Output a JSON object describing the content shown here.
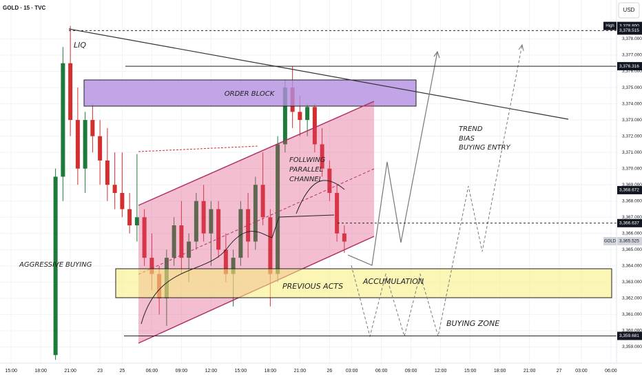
{
  "chart_data": {
    "type": "candlestick",
    "title": "GOLD · 15 · TVC",
    "currency": "USD",
    "up_color": "#1e7a3a",
    "down_color": "#d32f2f",
    "grid": true,
    "categories": [
      null,
      "15:00",
      null,
      null,
      null,
      "18:00",
      null,
      null,
      null,
      "21:00",
      null,
      null,
      null,
      "23",
      null,
      null,
      "25",
      null,
      null,
      null,
      "06:00",
      null,
      null,
      null,
      "09:00",
      null,
      null,
      null,
      "12:00",
      null,
      null,
      null,
      "15:00",
      null,
      null,
      null,
      "18:00",
      null,
      null,
      null,
      "21:00",
      null,
      null,
      null,
      "26",
      null,
      null,
      "03:00",
      null,
      null,
      null,
      "06:00",
      null,
      null,
      null,
      "09:00",
      null,
      null,
      null,
      "12:00",
      null,
      null,
      null,
      "15:00",
      null,
      null,
      null,
      "18:00",
      null,
      null,
      null,
      "21:00",
      null,
      null,
      null,
      "27",
      null,
      null,
      "03:00",
      null,
      null,
      null,
      "06:00"
    ],
    "open": [
      null,
      null,
      null,
      null,
      null,
      null,
      null,
      3358.5,
      3369.5,
      3376.5,
      3373,
      3370,
      3373,
      3372,
      3370.5,
      3369,
      3368.5,
      3367.5,
      3366.5,
      3367,
      3364.5,
      3363.5,
      3362,
      3364.5,
      3366.5,
      3364.5,
      3365.5,
      3368,
      3366,
      3367.5,
      3365,
      3363.5,
      3364.5,
      3367.5,
      3365.5,
      3369,
      3367,
      3363.5,
      3371.5,
      3375,
      3373.5,
      3373,
      3373.8,
      3371.5,
      3370,
      3368.5,
      3366,
      null,
      null,
      null,
      null,
      null,
      null,
      null,
      null,
      null,
      null,
      null,
      null,
      null,
      null,
      null,
      null,
      null,
      null,
      null,
      null,
      null,
      null,
      null,
      null,
      null,
      null,
      null,
      null,
      null,
      null,
      null,
      null,
      null,
      null,
      null,
      null
    ],
    "high": [
      null,
      null,
      null,
      null,
      null,
      null,
      null,
      3370,
      3377.5,
      3378.8,
      3375,
      3373.5,
      3374,
      3373,
      3372.5,
      3371,
      3371,
      3368.5,
      3370.9,
      3367.5,
      3366,
      3364,
      3365,
      3367,
      3368,
      3366,
      3368.5,
      3369,
      3368,
      3368,
      3366,
      3365,
      3368,
      3368.5,
      3369.5,
      3371,
      3367.5,
      3372,
      3375.5,
      3376.3,
      3374.5,
      3374,
      3374,
      3372.5,
      3370.5,
      3369,
      3366.5,
      null,
      null,
      null,
      null,
      null,
      null,
      null,
      null,
      null,
      null,
      null,
      null,
      null,
      null,
      null,
      null,
      null,
      null,
      null,
      null,
      null,
      null,
      null,
      null,
      null,
      null,
      null,
      null,
      null,
      null,
      null,
      null,
      null,
      null,
      null,
      null
    ],
    "low": [
      null,
      null,
      null,
      null,
      null,
      null,
      null,
      3358.2,
      3368,
      3372,
      3369,
      3368.5,
      3371,
      3369,
      3368,
      3367.5,
      3367,
      3366,
      3365.5,
      3364,
      3362.5,
      3361,
      3360.3,
      3364,
      3363.5,
      3363,
      3365,
      3365.5,
      3364,
      3364.5,
      3363,
      3361.5,
      3364,
      3364.5,
      3365,
      3366.5,
      3361.5,
      3363,
      3371,
      3372.5,
      3372,
      3372,
      3371,
      3369.5,
      3368,
      3365.5,
      3364.8,
      null,
      null,
      null,
      null,
      null,
      null,
      null,
      null,
      null,
      null,
      null,
      null,
      null,
      null,
      null,
      null,
      null,
      null,
      null,
      null,
      null,
      null,
      null,
      null,
      null,
      null,
      null,
      null,
      null,
      null,
      null,
      null,
      null,
      null,
      null,
      null
    ],
    "close": [
      null,
      null,
      null,
      null,
      null,
      null,
      null,
      3369.5,
      3376.5,
      3373,
      3370,
      3373,
      3372,
      3370.5,
      3369,
      3368.5,
      3367.5,
      3366.5,
      3367,
      3364.5,
      3363.5,
      3362,
      3364.5,
      3366.5,
      3364.5,
      3365.5,
      3368,
      3366,
      3367.5,
      3365,
      3363.5,
      3364.5,
      3367.5,
      3365.5,
      3369,
      3367,
      3363.5,
      3371.5,
      3375,
      3373.5,
      3373,
      3373.8,
      3371.5,
      3370,
      3368.5,
      3366,
      3365.5,
      null,
      null,
      null,
      null,
      null,
      null,
      null,
      null,
      null,
      null,
      null,
      null,
      null,
      null,
      null,
      null,
      null,
      null,
      null,
      null,
      null,
      null,
      null,
      null,
      null,
      null,
      null,
      null,
      null,
      null,
      null,
      null,
      null,
      null,
      null,
      null
    ],
    "ylim": [
      3358.0,
      3380.4
    ],
    "yticks": [
      {
        "value": 3359,
        "label": "3,359.000"
      },
      {
        "value": 3360,
        "label": "3,360.000"
      },
      {
        "value": 3361,
        "label": "3,361.000"
      },
      {
        "value": 3362,
        "label": "3,362.000"
      },
      {
        "value": 3363,
        "label": "3,363.000"
      },
      {
        "value": 3364,
        "label": "3,364.000"
      },
      {
        "value": 3365,
        "label": "3,365.000"
      },
      {
        "value": 3366,
        "label": "3,366.000"
      },
      {
        "value": 3367,
        "label": "3,367.000"
      },
      {
        "value": 3368,
        "label": "3,368.000"
      },
      {
        "value": 3369,
        "label": "3,369.000"
      },
      {
        "value": 3370,
        "label": "3,370.000"
      },
      {
        "value": 3371,
        "label": "3,371.000"
      },
      {
        "value": 3372,
        "label": "3,372.000"
      },
      {
        "value": 3373,
        "label": "3,373.000"
      },
      {
        "value": 3374,
        "label": "3,374.000"
      },
      {
        "value": 3375,
        "label": "3,375.000"
      },
      {
        "value": 3376,
        "label": "3,376.000"
      },
      {
        "value": 3377,
        "label": "3,377.000"
      },
      {
        "value": 3378,
        "label": "3,378.000"
      }
    ],
    "price_levels": [
      {
        "value": 3378.8,
        "label": "3,378.800",
        "tag": "High",
        "line": "none",
        "color": "#131722"
      },
      {
        "value": 3378.515,
        "label": "3,378.515",
        "line": "dashed",
        "color": "#131722"
      },
      {
        "value": 3376.316,
        "label": "3,376.316",
        "line": "solid",
        "color": "#131722"
      },
      {
        "value": 3368.672,
        "label": "3,368.672",
        "line": "none",
        "color": "#131722"
      },
      {
        "value": 3366.637,
        "label": "3,366.637",
        "line": "dashed",
        "color": "#131722"
      },
      {
        "value": 3365.525,
        "label": "3,365.525",
        "tag": "GOLD",
        "line": "none",
        "color": "#d1d4dc"
      },
      {
        "value": 3359.681,
        "label": "3,359.681",
        "line": "solid",
        "color": "#131722"
      }
    ],
    "annotations": [
      "LIQ",
      "ORDER BLOCK",
      "FOLLWING",
      "PARALLEL",
      "CHANNEL",
      "TREND",
      "BIAS",
      "BUYING ENTRY",
      "AGGRESSIVE",
      "BUYING",
      "PREVIOUS ACTS",
      "ACCUMULATION",
      "BUYING ZONE"
    ]
  }
}
